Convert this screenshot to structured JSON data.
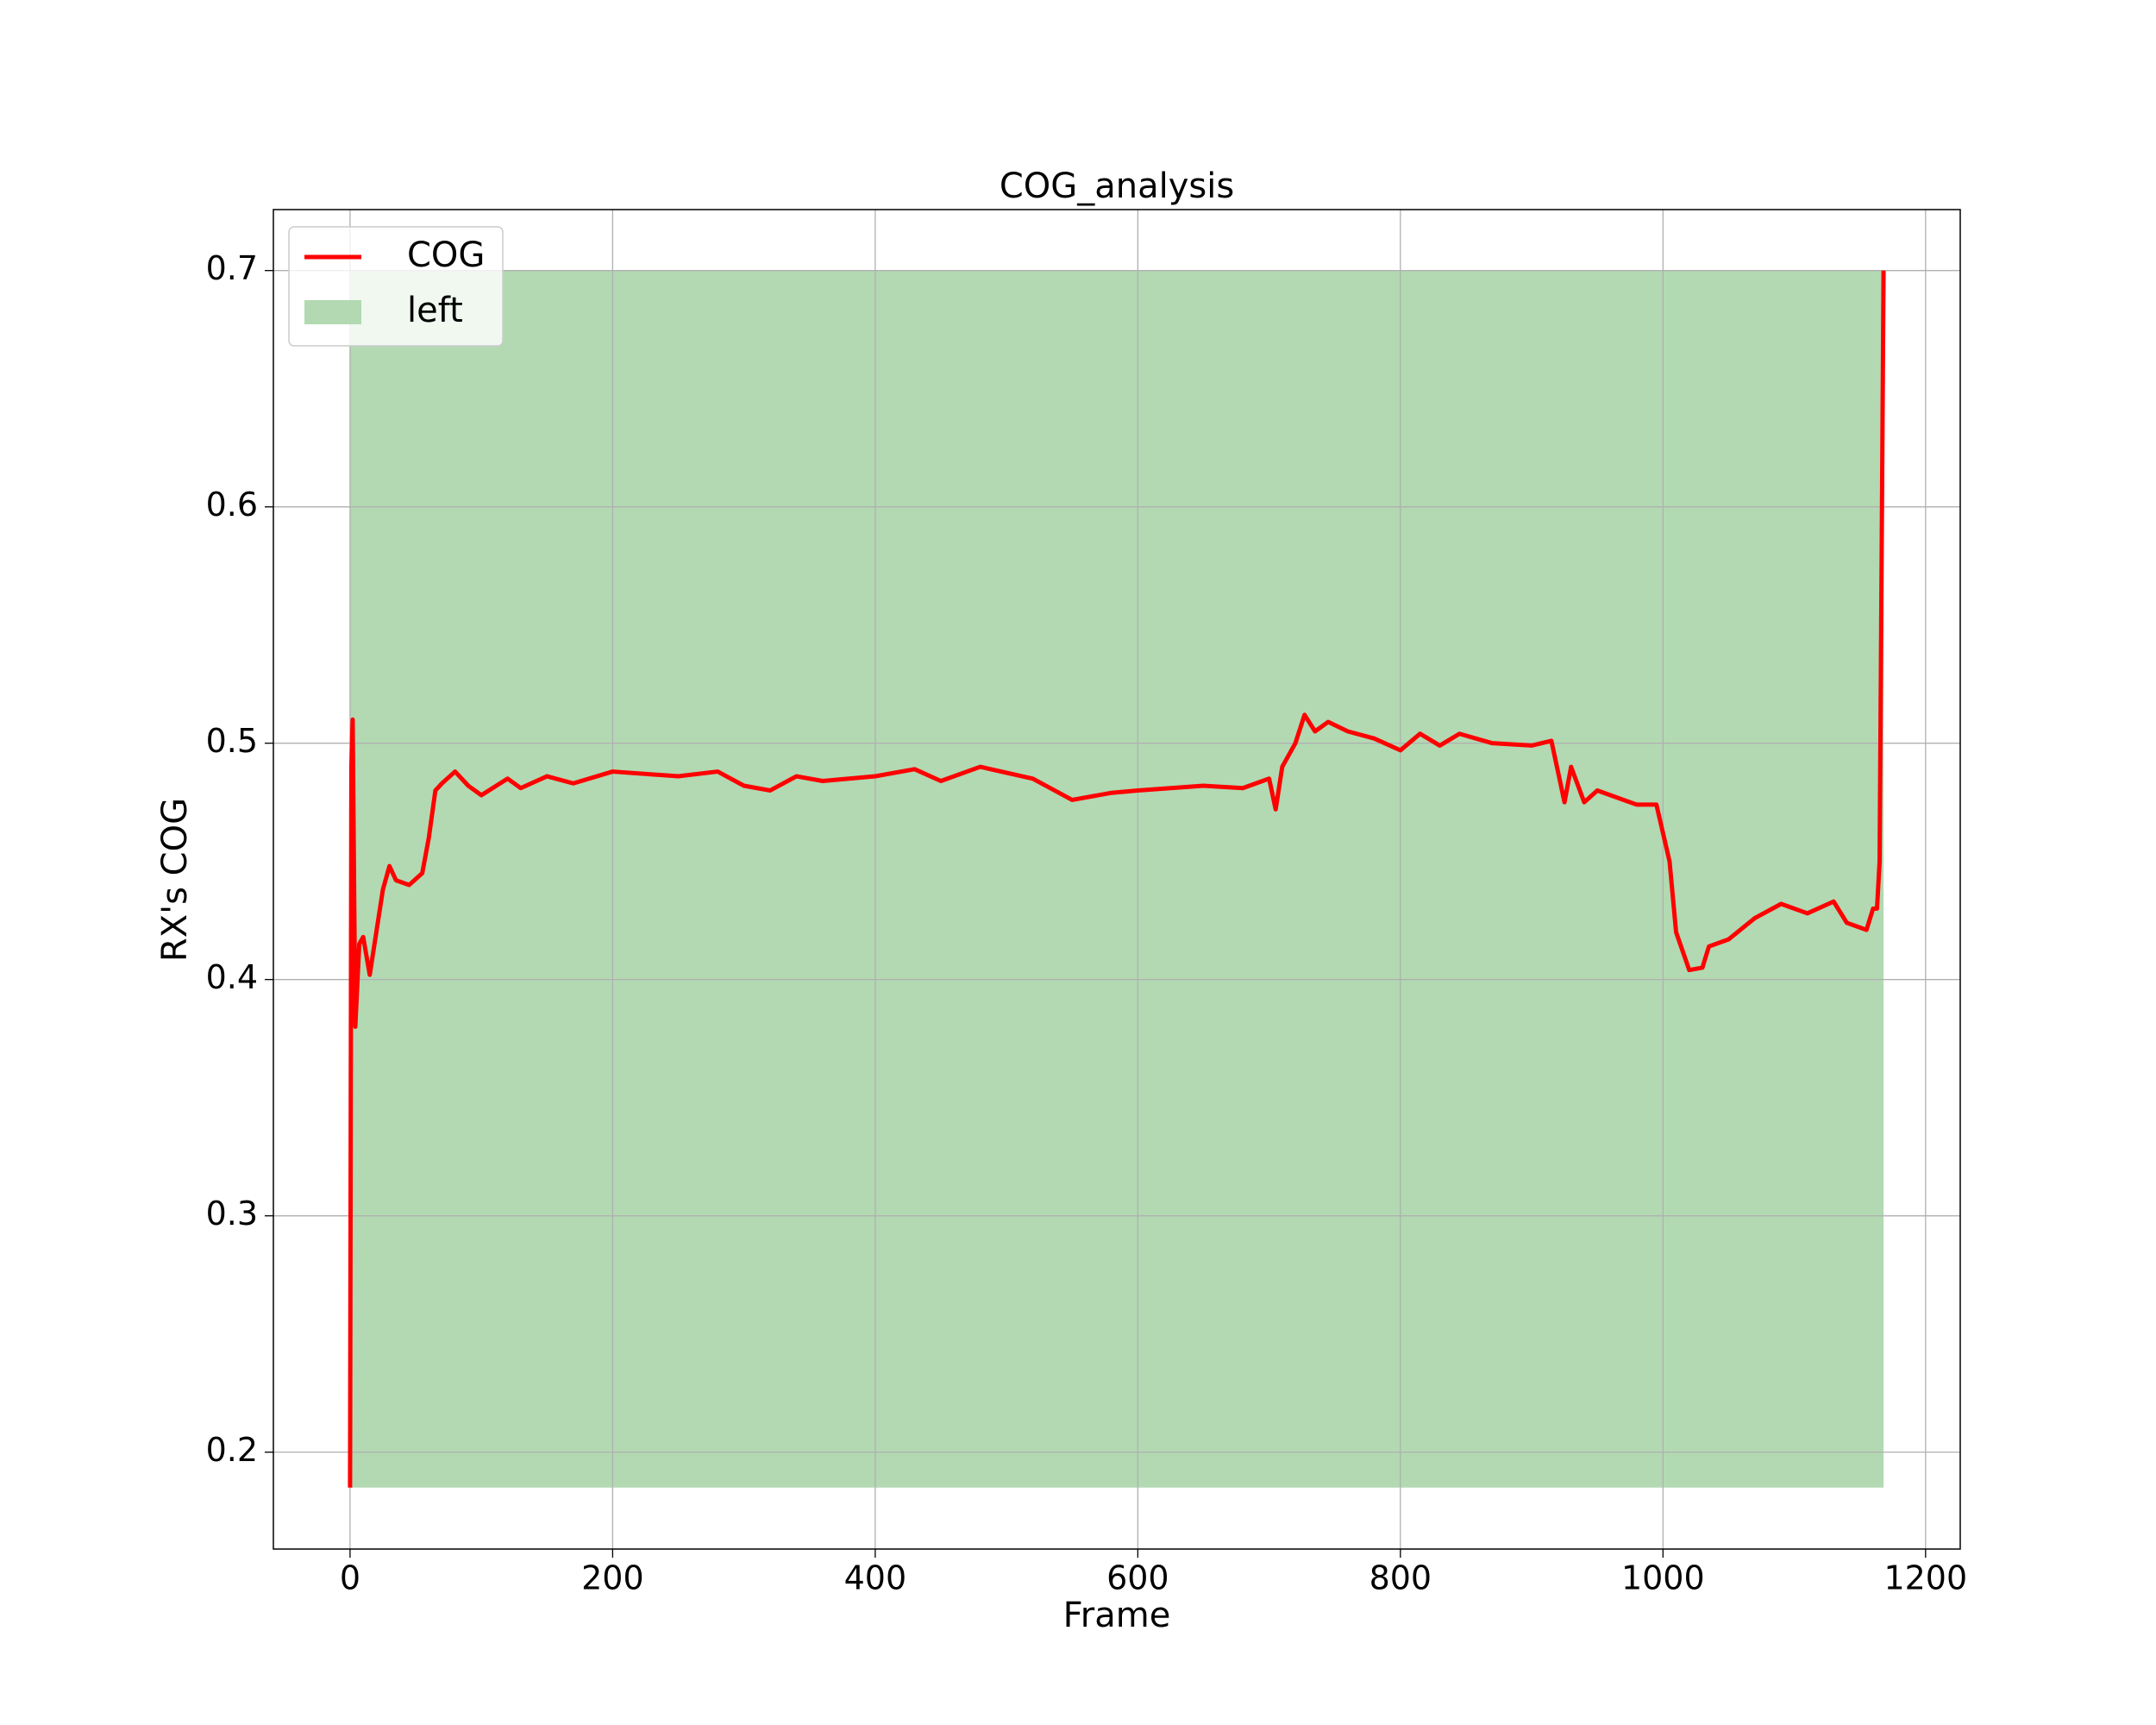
{
  "chart_data": {
    "type": "line",
    "title": "COG_analysis",
    "xlabel": "Frame",
    "ylabel": "RX's COG",
    "series": [
      {
        "name": "COG",
        "color": "#ff0000",
        "x": [
          0,
          1,
          2,
          4,
          7,
          10,
          15,
          20,
          25,
          30,
          35,
          45,
          55,
          60,
          65,
          70,
          80,
          90,
          100,
          120,
          130,
          150,
          170,
          200,
          250,
          280,
          300,
          320,
          340,
          360,
          400,
          430,
          450,
          480,
          520,
          550,
          580,
          600,
          650,
          680,
          700,
          705,
          710,
          720,
          727,
          735,
          745,
          760,
          780,
          800,
          815,
          830,
          845,
          870,
          900,
          915,
          925,
          930,
          940,
          950,
          980,
          995,
          1005,
          1010,
          1020,
          1030,
          1035,
          1050,
          1070,
          1090,
          1110,
          1130,
          1140,
          1155,
          1160,
          1163,
          1165,
          1168
        ],
        "values": [
          0.185,
          0.49,
          0.51,
          0.38,
          0.415,
          0.418,
          0.402,
          0.42,
          0.438,
          0.448,
          0.442,
          0.44,
          0.445,
          0.46,
          0.48,
          0.483,
          0.488,
          0.482,
          0.478,
          0.485,
          0.481,
          0.486,
          0.483,
          0.488,
          0.486,
          0.488,
          0.482,
          0.48,
          0.486,
          0.484,
          0.486,
          0.489,
          0.484,
          0.49,
          0.485,
          0.476,
          0.479,
          0.48,
          0.482,
          0.481,
          0.485,
          0.472,
          0.49,
          0.5,
          0.512,
          0.505,
          0.509,
          0.505,
          0.502,
          0.497,
          0.504,
          0.499,
          0.504,
          0.5,
          0.499,
          0.501,
          0.475,
          0.49,
          0.475,
          0.48,
          0.474,
          0.474,
          0.45,
          0.42,
          0.404,
          0.405,
          0.414,
          0.417,
          0.426,
          0.432,
          0.428,
          0.433,
          0.424,
          0.421,
          0.43,
          0.43,
          0.45,
          0.7
        ]
      }
    ],
    "fill": {
      "name": "left",
      "color": "#b2d9b2",
      "x": [
        0,
        1168
      ],
      "lower": [
        0.185,
        0.185
      ],
      "upper": [
        0.7,
        0.7
      ]
    },
    "xlim": [
      -58.4,
      1226.4
    ],
    "ylim": [
      0.159,
      0.7258
    ],
    "xticks": [
      0,
      200,
      400,
      600,
      800,
      1000,
      1200
    ],
    "yticks": [
      0.2,
      0.3,
      0.4,
      0.5,
      0.6,
      0.7
    ],
    "grid": true,
    "legend": "upper-left"
  }
}
